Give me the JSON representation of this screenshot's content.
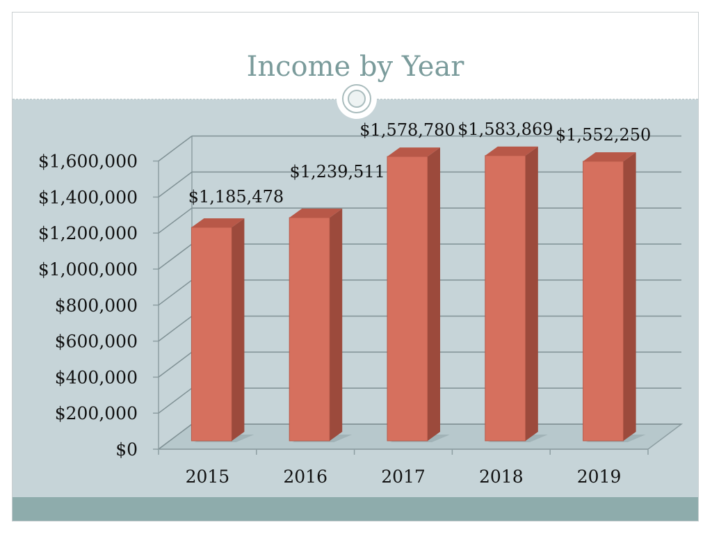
{
  "slide": {
    "title": "Income by Year"
  },
  "chart_data": {
    "type": "bar",
    "title": "",
    "xlabel": "",
    "ylabel": "",
    "categories": [
      "2015",
      "2016",
      "2017",
      "2018",
      "2019"
    ],
    "values": [
      1185478,
      1239511,
      1578780,
      1583869,
      1552250
    ],
    "data_labels": [
      "$1,185,478",
      "$1,239,511",
      "$1,578,780",
      "$1,583,869",
      "$1,552,250"
    ],
    "ylim": [
      0,
      1600000
    ],
    "y_ticks": [
      0,
      200000,
      400000,
      600000,
      800000,
      1000000,
      1200000,
      1400000,
      1600000
    ],
    "y_tick_labels": [
      "$0",
      "$200,000",
      "$400,000",
      "$600,000",
      "$800,000",
      "$1,000,000",
      "$1,200,000",
      "$1,400,000",
      "$1,600,000"
    ],
    "grid": true,
    "style": "3d-column",
    "bar_color": "#d6705e",
    "bar_side_color": "#9c4a3c",
    "bar_top_color": "#b85848"
  }
}
